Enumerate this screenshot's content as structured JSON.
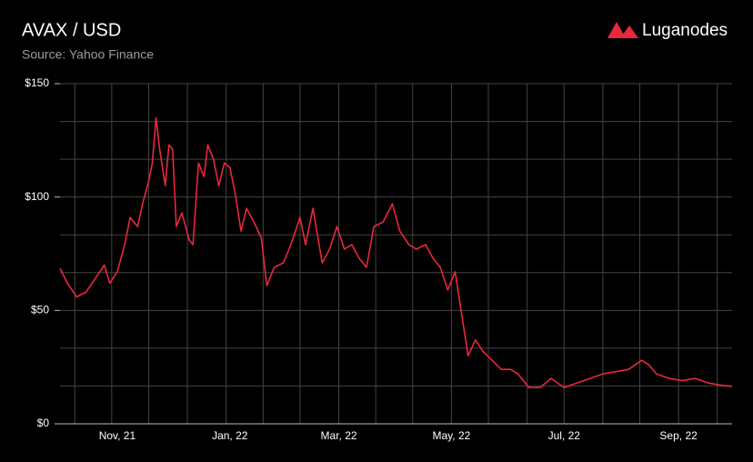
{
  "logo": "Luganodes",
  "chart_data": {
    "type": "line",
    "title": "AVAX / USD",
    "subtitle": "Source: Yahoo Finance",
    "x": [
      "2021-10-01",
      "2021-10-05",
      "2021-10-10",
      "2021-10-15",
      "2021-10-20",
      "2021-10-25",
      "2021-10-28",
      "2021-11-01",
      "2021-11-05",
      "2021-11-08",
      "2021-11-12",
      "2021-11-15",
      "2021-11-18",
      "2021-11-20",
      "2021-11-22",
      "2021-11-24",
      "2021-11-27",
      "2021-11-29",
      "2021-12-01",
      "2021-12-03",
      "2021-12-06",
      "2021-12-10",
      "2021-12-12",
      "2021-12-15",
      "2021-12-18",
      "2021-12-20",
      "2021-12-23",
      "2021-12-26",
      "2021-12-29",
      "2022-01-01",
      "2022-01-04",
      "2022-01-07",
      "2022-01-10",
      "2022-01-14",
      "2022-01-18",
      "2022-01-21",
      "2022-01-25",
      "2022-01-30",
      "2022-02-03",
      "2022-02-08",
      "2022-02-11",
      "2022-02-15",
      "2022-02-20",
      "2022-02-24",
      "2022-02-28",
      "2022-03-04",
      "2022-03-08",
      "2022-03-12",
      "2022-03-16",
      "2022-03-20",
      "2022-03-25",
      "2022-03-30",
      "2022-04-03",
      "2022-04-08",
      "2022-04-12",
      "2022-04-17",
      "2022-04-21",
      "2022-04-25",
      "2022-04-29",
      "2022-05-03",
      "2022-05-06",
      "2022-05-10",
      "2022-05-14",
      "2022-05-18",
      "2022-05-23",
      "2022-05-28",
      "2022-06-02",
      "2022-06-06",
      "2022-06-12",
      "2022-06-18",
      "2022-06-24",
      "2022-07-01",
      "2022-07-08",
      "2022-07-15",
      "2022-07-22",
      "2022-07-29",
      "2022-08-05",
      "2022-08-12",
      "2022-08-16",
      "2022-08-20",
      "2022-08-27",
      "2022-09-03",
      "2022-09-10",
      "2022-09-17",
      "2022-09-24",
      "2022-09-30"
    ],
    "series": [
      {
        "name": "AVAX",
        "color": "#e8283c",
        "values": [
          68.6,
          62,
          56,
          58,
          64,
          70,
          62,
          67,
          79,
          91,
          87,
          98,
          107,
          115,
          135,
          121,
          105,
          123,
          121,
          87,
          93,
          81,
          79,
          115,
          109,
          123,
          117,
          105,
          115,
          113,
          101,
          85,
          95,
          89,
          82,
          61,
          69,
          71,
          79,
          91,
          79,
          95,
          71,
          77,
          87,
          77,
          79,
          73,
          69,
          87,
          89,
          97,
          85,
          79,
          77,
          79,
          73,
          69,
          59,
          67,
          51,
          30,
          37,
          32,
          28,
          24,
          24,
          22,
          16,
          16,
          20,
          16,
          18,
          20,
          22,
          23,
          24,
          28,
          26,
          22,
          20,
          19,
          20,
          18,
          17,
          16.5
        ]
      }
    ],
    "xlim": [
      "2021-10-01",
      "2022-09-30"
    ],
    "xticks": [
      {
        "value": "2021-11-01",
        "label": "Nov, 21"
      },
      {
        "value": "2022-01-01",
        "label": "Jan, 22"
      },
      {
        "value": "2022-03-01",
        "label": "Mar, 22"
      },
      {
        "value": "2022-05-01",
        "label": "May, 22"
      },
      {
        "value": "2022-07-01",
        "label": "Jul, 22"
      },
      {
        "value": "2022-09-01",
        "label": "Sep, 22"
      }
    ],
    "xgrid": [
      "2021-10-09",
      "2021-10-29",
      "2021-11-18",
      "2021-12-09",
      "2021-12-30",
      "2022-01-19",
      "2022-02-08",
      "2022-03-01",
      "2022-03-21",
      "2022-04-10",
      "2022-05-01",
      "2022-05-21",
      "2022-06-11",
      "2022-07-01",
      "2022-07-22",
      "2022-08-11",
      "2022-09-01",
      "2022-09-22"
    ],
    "ylim": [
      0,
      150
    ],
    "yticks": [
      {
        "value": 0,
        "label": "$0"
      },
      {
        "value": 50,
        "label": "$50"
      },
      {
        "value": 100,
        "label": "$100"
      },
      {
        "value": 150,
        "label": "$150"
      }
    ],
    "ygrid": [
      16.67,
      33.33,
      66.67,
      83.33,
      116.67,
      133.33
    ],
    "grid": true
  }
}
